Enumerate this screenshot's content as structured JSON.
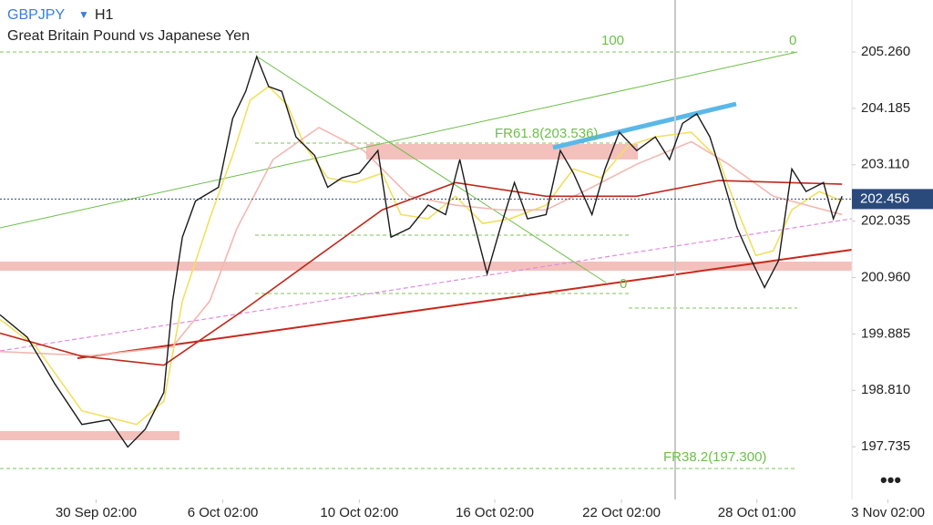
{
  "chart_data": {
    "type": "line",
    "symbol": "GBPJPY",
    "timeframe": "H1",
    "title": "Great Britain Pound vs Japanese Yen",
    "color": "#1a1a1a",
    "x": [
      0,
      25,
      50,
      75,
      100,
      117,
      133,
      150,
      158,
      167,
      179,
      200,
      213,
      225,
      235,
      246,
      258,
      271,
      288,
      300,
      313,
      329,
      346,
      358,
      375,
      392,
      408,
      421,
      433,
      446,
      458,
      471,
      483,
      500,
      513,
      525,
      542,
      554,
      567,
      583,
      600,
      613,
      625,
      638,
      650,
      663,
      675,
      688,
      700,
      713,
      725,
      738,
      754,
      763,
      771
    ],
    "values": [
      200.25,
      199.82,
      198.94,
      198.16,
      198.25,
      197.73,
      198.07,
      198.77,
      200.51,
      201.73,
      202.42,
      202.68,
      203.99,
      204.51,
      205.17,
      204.6,
      204.51,
      203.64,
      203.29,
      202.68,
      202.86,
      202.95,
      203.38,
      201.73,
      201.9,
      202.34,
      202.16,
      203.21,
      202.08,
      201.03,
      201.9,
      202.77,
      202.08,
      202.16,
      203.38,
      202.95,
      202.16,
      203.03,
      203.73,
      203.38,
      203.64,
      203.21,
      203.9,
      204.08,
      203.64,
      202.77,
      201.9,
      201.29,
      200.77,
      201.29,
      203.03,
      202.6,
      202.77,
      202.08,
      202.51
    ],
    "moving_averages": [
      {
        "color": "#f0e060",
        "x": [
          0,
          33,
          75,
          125,
          150,
          167,
          192,
          213,
          229,
          246,
          263,
          279,
          300,
          325,
          350,
          367,
          392,
          417,
          442,
          467,
          500,
          525,
          550,
          575,
          600,
          633,
          658,
          675,
          692,
          708,
          725,
          750,
          771
        ],
        "values": [
          200.16,
          199.64,
          198.42,
          198.16,
          198.6,
          200.51,
          202.08,
          203.29,
          204.34,
          204.6,
          204.25,
          203.47,
          202.86,
          202.77,
          202.95,
          202.16,
          202.08,
          202.51,
          201.99,
          202.08,
          202.34,
          203.03,
          202.86,
          203.47,
          203.64,
          203.73,
          203.21,
          202.25,
          201.38,
          201.47,
          202.25,
          202.6,
          202.42
        ]
      },
      {
        "color": "#f2b8b0",
        "x": [
          0,
          83,
          158,
          192,
          217,
          250,
          292,
          333,
          375,
          417,
          458,
          500,
          542,
          583,
          633,
          667,
          708,
          771
        ],
        "values": [
          199.55,
          199.47,
          199.64,
          200.51,
          201.9,
          203.21,
          203.82,
          203.38,
          202.51,
          202.34,
          202.25,
          202.25,
          202.68,
          203.12,
          203.55,
          203.12,
          202.51,
          202.16
        ]
      },
      {
        "color": "#c0281c",
        "x": [
          0,
          75,
          150,
          217,
          292,
          350,
          417,
          500,
          583,
          658,
          771
        ],
        "values": [
          199.9,
          199.46,
          199.29,
          200.25,
          201.38,
          202.25,
          202.77,
          202.51,
          202.51,
          202.81,
          202.74
        ]
      }
    ],
    "last_price": 202.456,
    "last_price_label": "202.456",
    "annotations": [
      "100",
      "0",
      "FR61.8(203.536)",
      "0",
      "FR38.2(197.300)"
    ],
    "xlim": [
      0,
      780
    ],
    "xticks": [
      {
        "value": 88,
        "label": "30 Sep 02:00"
      },
      {
        "value": 204,
        "label": "6 Oct 02:00"
      },
      {
        "value": 329,
        "label": "10 Oct 02:00"
      },
      {
        "value": 453,
        "label": "16 Oct 02:00"
      },
      {
        "value": 569,
        "label": "22 Oct 02:00"
      },
      {
        "value": 693,
        "label": "28 Oct 01:00"
      },
      {
        "value": 813,
        "label": "3 Nov 02:00"
      }
    ],
    "ylim": [
      196.73,
      206.25
    ],
    "yticks": [
      {
        "value": 205.26,
        "label": "205.260"
      },
      {
        "value": 204.185,
        "label": "204.185"
      },
      {
        "value": 203.11,
        "label": "203.110"
      },
      {
        "value": 202.035,
        "label": "202.035"
      },
      {
        "value": 200.96,
        "label": "200.960"
      },
      {
        "value": 199.885,
        "label": "199.885"
      },
      {
        "value": 198.81,
        "label": "198.810"
      },
      {
        "value": 197.735,
        "label": "197.735"
      }
    ]
  }
}
